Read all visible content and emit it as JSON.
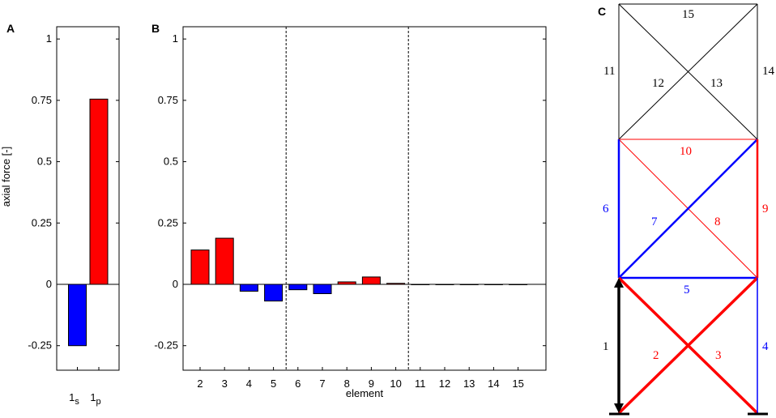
{
  "panel_labels": {
    "a": "A",
    "b": "B",
    "c": "C"
  },
  "colors": {
    "tension": "#ff0000",
    "compression": "#0000ff",
    "neutral": "#000000"
  },
  "chart_data": [
    {
      "type": "bar",
      "panel": "A",
      "categories": [
        "1s",
        "1p"
      ],
      "category_labels": [
        {
          "main": "1",
          "sub": "s"
        },
        {
          "main": "1",
          "sub": "p"
        }
      ],
      "values": [
        -0.25,
        0.755
      ],
      "colors": [
        "#0000ff",
        "#ff0000"
      ],
      "ylabel": "axial force [-]",
      "ylim": [
        -0.35,
        1.05
      ],
      "yticks": [
        -0.25,
        0,
        0.25,
        0.5,
        0.75,
        1
      ],
      "ytick_labels": [
        "-0.25",
        "0",
        "0.25",
        "0.5",
        "0.75",
        "1"
      ],
      "grid": false
    },
    {
      "type": "bar",
      "panel": "B",
      "xlabel": "element",
      "categories": [
        "2",
        "3",
        "4",
        "5",
        "6",
        "7",
        "8",
        "9",
        "10",
        "11",
        "12",
        "13",
        "14",
        "15"
      ],
      "values": [
        0.14,
        0.188,
        -0.028,
        -0.068,
        -0.022,
        -0.038,
        0.01,
        0.03,
        0.004,
        0,
        0,
        0,
        0,
        0
      ],
      "colors": [
        "#ff0000",
        "#ff0000",
        "#0000ff",
        "#0000ff",
        "#0000ff",
        "#0000ff",
        "#ff0000",
        "#ff0000",
        "#ff0000",
        "#ff0000",
        "#ff0000",
        "#ff0000",
        "#ff0000",
        "#ff0000"
      ],
      "groups": [
        [
          "2",
          "3",
          "4",
          "5"
        ],
        [
          "6",
          "7",
          "8",
          "9",
          "10"
        ],
        [
          "11",
          "12",
          "13",
          "14",
          "15"
        ]
      ],
      "ylim": [
        -0.35,
        1.05
      ],
      "yticks": [
        -0.25,
        0,
        0.25,
        0.5,
        0.75,
        1
      ],
      "ytick_labels": [
        "-0.25",
        "0",
        "0.25",
        "0.5",
        "0.75",
        "1"
      ],
      "grid": false
    }
  ],
  "truss": {
    "element_labels": [
      "1",
      "2",
      "3",
      "4",
      "5",
      "6",
      "7",
      "8",
      "9",
      "10",
      "11",
      "12",
      "13",
      "14",
      "15"
    ]
  }
}
